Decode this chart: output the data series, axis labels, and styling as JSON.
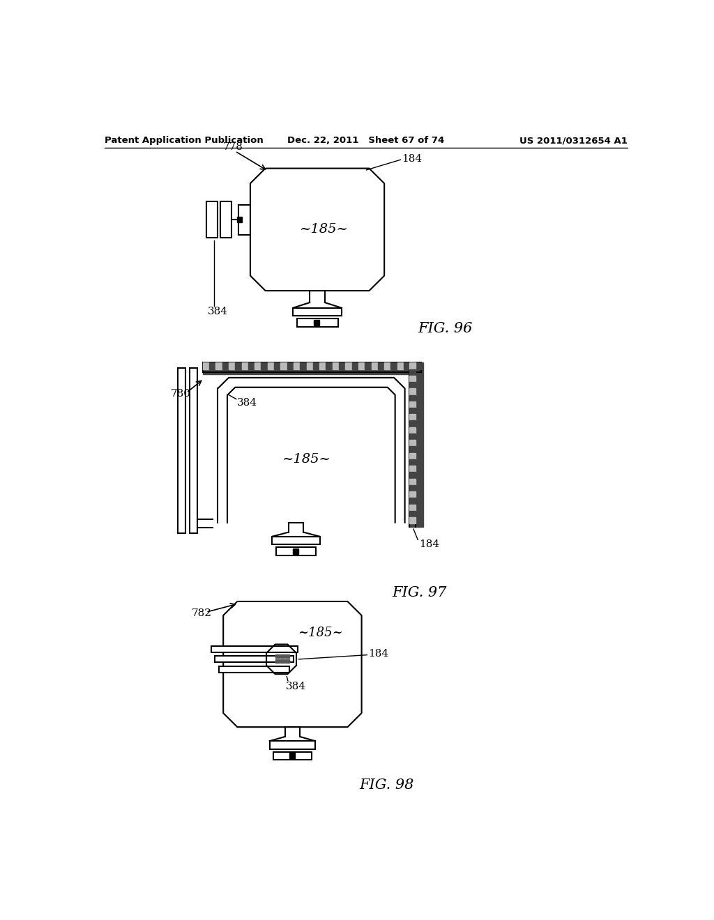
{
  "bg_color": "#ffffff",
  "line_color": "#000000",
  "header_left": "Patent Application Publication",
  "header_mid": "Dec. 22, 2011   Sheet 67 of 74",
  "header_right": "US 2011/0312654 A1",
  "fig96_label": "FIG. 96",
  "fig97_label": "FIG. 97",
  "fig98_label": "FIG. 98",
  "ref778": "778",
  "ref780": "780",
  "ref782": "782",
  "ref184_96": "184",
  "ref185_96": "~185~",
  "ref384_96": "384",
  "ref184_97": "184",
  "ref185_97": "~185~",
  "ref384_97": "384",
  "ref184_98": "184",
  "ref185_98": "~185~",
  "ref384_98": "384"
}
